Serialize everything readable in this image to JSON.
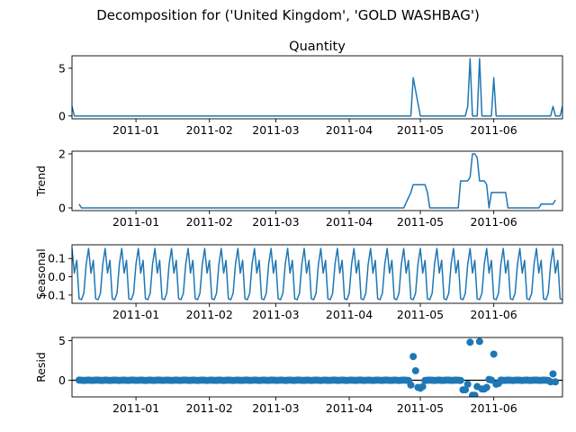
{
  "figure": {
    "suptitle": "Decomposition for ('United Kingdom', 'GOLD WASHBAG')",
    "accent_color": "#1f77b4"
  },
  "chart_data": [
    {
      "type": "line",
      "title": "Quantity",
      "ylabel": "",
      "x_start": "2010-12-05",
      "x_end": "2011-06-30",
      "xticks": [
        "2011-01",
        "2011-02",
        "2011-03",
        "2011-04",
        "2011-05",
        "2011-06"
      ],
      "yticks": [
        "0",
        "5"
      ],
      "ylim": [
        -0.3,
        6.3
      ],
      "grid": false,
      "points": [
        [
          "2010-12-05",
          1
        ],
        [
          "2010-12-06",
          0
        ],
        [
          "2011-04-27",
          0
        ],
        [
          "2011-04-28",
          4
        ],
        [
          "2011-05-01",
          0
        ],
        [
          "2011-05-20",
          0
        ],
        [
          "2011-05-21",
          1
        ],
        [
          "2011-05-22",
          6
        ],
        [
          "2011-05-23",
          0
        ],
        [
          "2011-05-25",
          0
        ],
        [
          "2011-05-26",
          6
        ],
        [
          "2011-05-27",
          0
        ],
        [
          "2011-05-31",
          0
        ],
        [
          "2011-06-01",
          4
        ],
        [
          "2011-06-02",
          0
        ],
        [
          "2011-06-25",
          0
        ],
        [
          "2011-06-26",
          1
        ],
        [
          "2011-06-27",
          0
        ],
        [
          "2011-06-29",
          0
        ],
        [
          "2011-06-30",
          1
        ]
      ]
    },
    {
      "type": "line",
      "title": "",
      "ylabel": "Trend",
      "x_start": "2010-12-05",
      "x_end": "2011-06-30",
      "xticks": [
        "2011-01",
        "2011-02",
        "2011-03",
        "2011-04",
        "2011-05",
        "2011-06"
      ],
      "yticks": [
        "0",
        "2"
      ],
      "ylim": [
        -0.1,
        2.1
      ],
      "grid": false,
      "points": [
        [
          "2010-12-08",
          0.14
        ],
        [
          "2010-12-09",
          0
        ],
        [
          "2011-04-24",
          0
        ],
        [
          "2011-04-27",
          0.57
        ],
        [
          "2011-04-28",
          0.86
        ],
        [
          "2011-05-03",
          0.86
        ],
        [
          "2011-05-04",
          0.57
        ],
        [
          "2011-05-05",
          0
        ],
        [
          "2011-05-17",
          0
        ],
        [
          "2011-05-18",
          1
        ],
        [
          "2011-05-21",
          1
        ],
        [
          "2011-05-22",
          1.14
        ],
        [
          "2011-05-23",
          2
        ],
        [
          "2011-05-24",
          2
        ],
        [
          "2011-05-25",
          1.86
        ],
        [
          "2011-05-26",
          1
        ],
        [
          "2011-05-28",
          1
        ],
        [
          "2011-05-29",
          0.86
        ],
        [
          "2011-05-30",
          0
        ],
        [
          "2011-05-31",
          0.57
        ],
        [
          "2011-06-06",
          0.57
        ],
        [
          "2011-06-07",
          0
        ],
        [
          "2011-06-20",
          0
        ],
        [
          "2011-06-21",
          0.14
        ],
        [
          "2011-06-26",
          0.14
        ],
        [
          "2011-06-27",
          0.29
        ]
      ]
    },
    {
      "type": "line",
      "title": "",
      "ylabel": "Seasonal",
      "x_start": "2010-12-05",
      "x_end": "2011-06-30",
      "xticks": [
        "2011-01",
        "2011-02",
        "2011-03",
        "2011-04",
        "2011-05",
        "2011-06"
      ],
      "yticks": [
        "0.1",
        "0.0",
        "−0.1"
      ],
      "ylim": [
        -0.145,
        0.175
      ],
      "grid": false,
      "series_start": "2010-12-05",
      "series_end": "2011-06-30",
      "weekly_pattern": [
        0.155,
        0.02,
        0.09,
        -0.12,
        -0.125,
        -0.09,
        0.07
      ]
    },
    {
      "type": "scatter",
      "title": "",
      "ylabel": "Resid",
      "x_start": "2010-12-05",
      "x_end": "2011-06-30",
      "xticks": [
        "2011-01",
        "2011-02",
        "2011-03",
        "2011-04",
        "2011-05",
        "2011-06"
      ],
      "yticks": [
        "0",
        "5"
      ],
      "ylim": [
        -2.1,
        5.4
      ],
      "grid": false,
      "baseline": 0,
      "series_start": "2010-12-08",
      "series_end": "2011-06-27",
      "outliers": [
        [
          "2011-04-27",
          -0.6
        ],
        [
          "2011-04-28",
          3
        ],
        [
          "2011-04-29",
          1.2
        ],
        [
          "2011-04-30",
          -0.9
        ],
        [
          "2011-05-01",
          -1
        ],
        [
          "2011-05-02",
          -0.8
        ],
        [
          "2011-05-19",
          -1.2
        ],
        [
          "2011-05-20",
          -1.2
        ],
        [
          "2011-05-21",
          -0.5
        ],
        [
          "2011-05-22",
          4.8
        ],
        [
          "2011-05-23",
          -1.9
        ],
        [
          "2011-05-24",
          -1.9
        ],
        [
          "2011-05-25",
          -0.8
        ],
        [
          "2011-05-26",
          4.9
        ],
        [
          "2011-05-27",
          -1.1
        ],
        [
          "2011-05-28",
          -1.1
        ],
        [
          "2011-05-29",
          -0.9
        ],
        [
          "2011-05-30",
          0.1
        ],
        [
          "2011-06-01",
          3.3
        ],
        [
          "2011-06-02",
          -0.5
        ],
        [
          "2011-06-03",
          -0.4
        ],
        [
          "2011-06-25",
          -0.2
        ],
        [
          "2011-06-26",
          0.8
        ],
        [
          "2011-06-27",
          -0.2
        ]
      ]
    }
  ]
}
